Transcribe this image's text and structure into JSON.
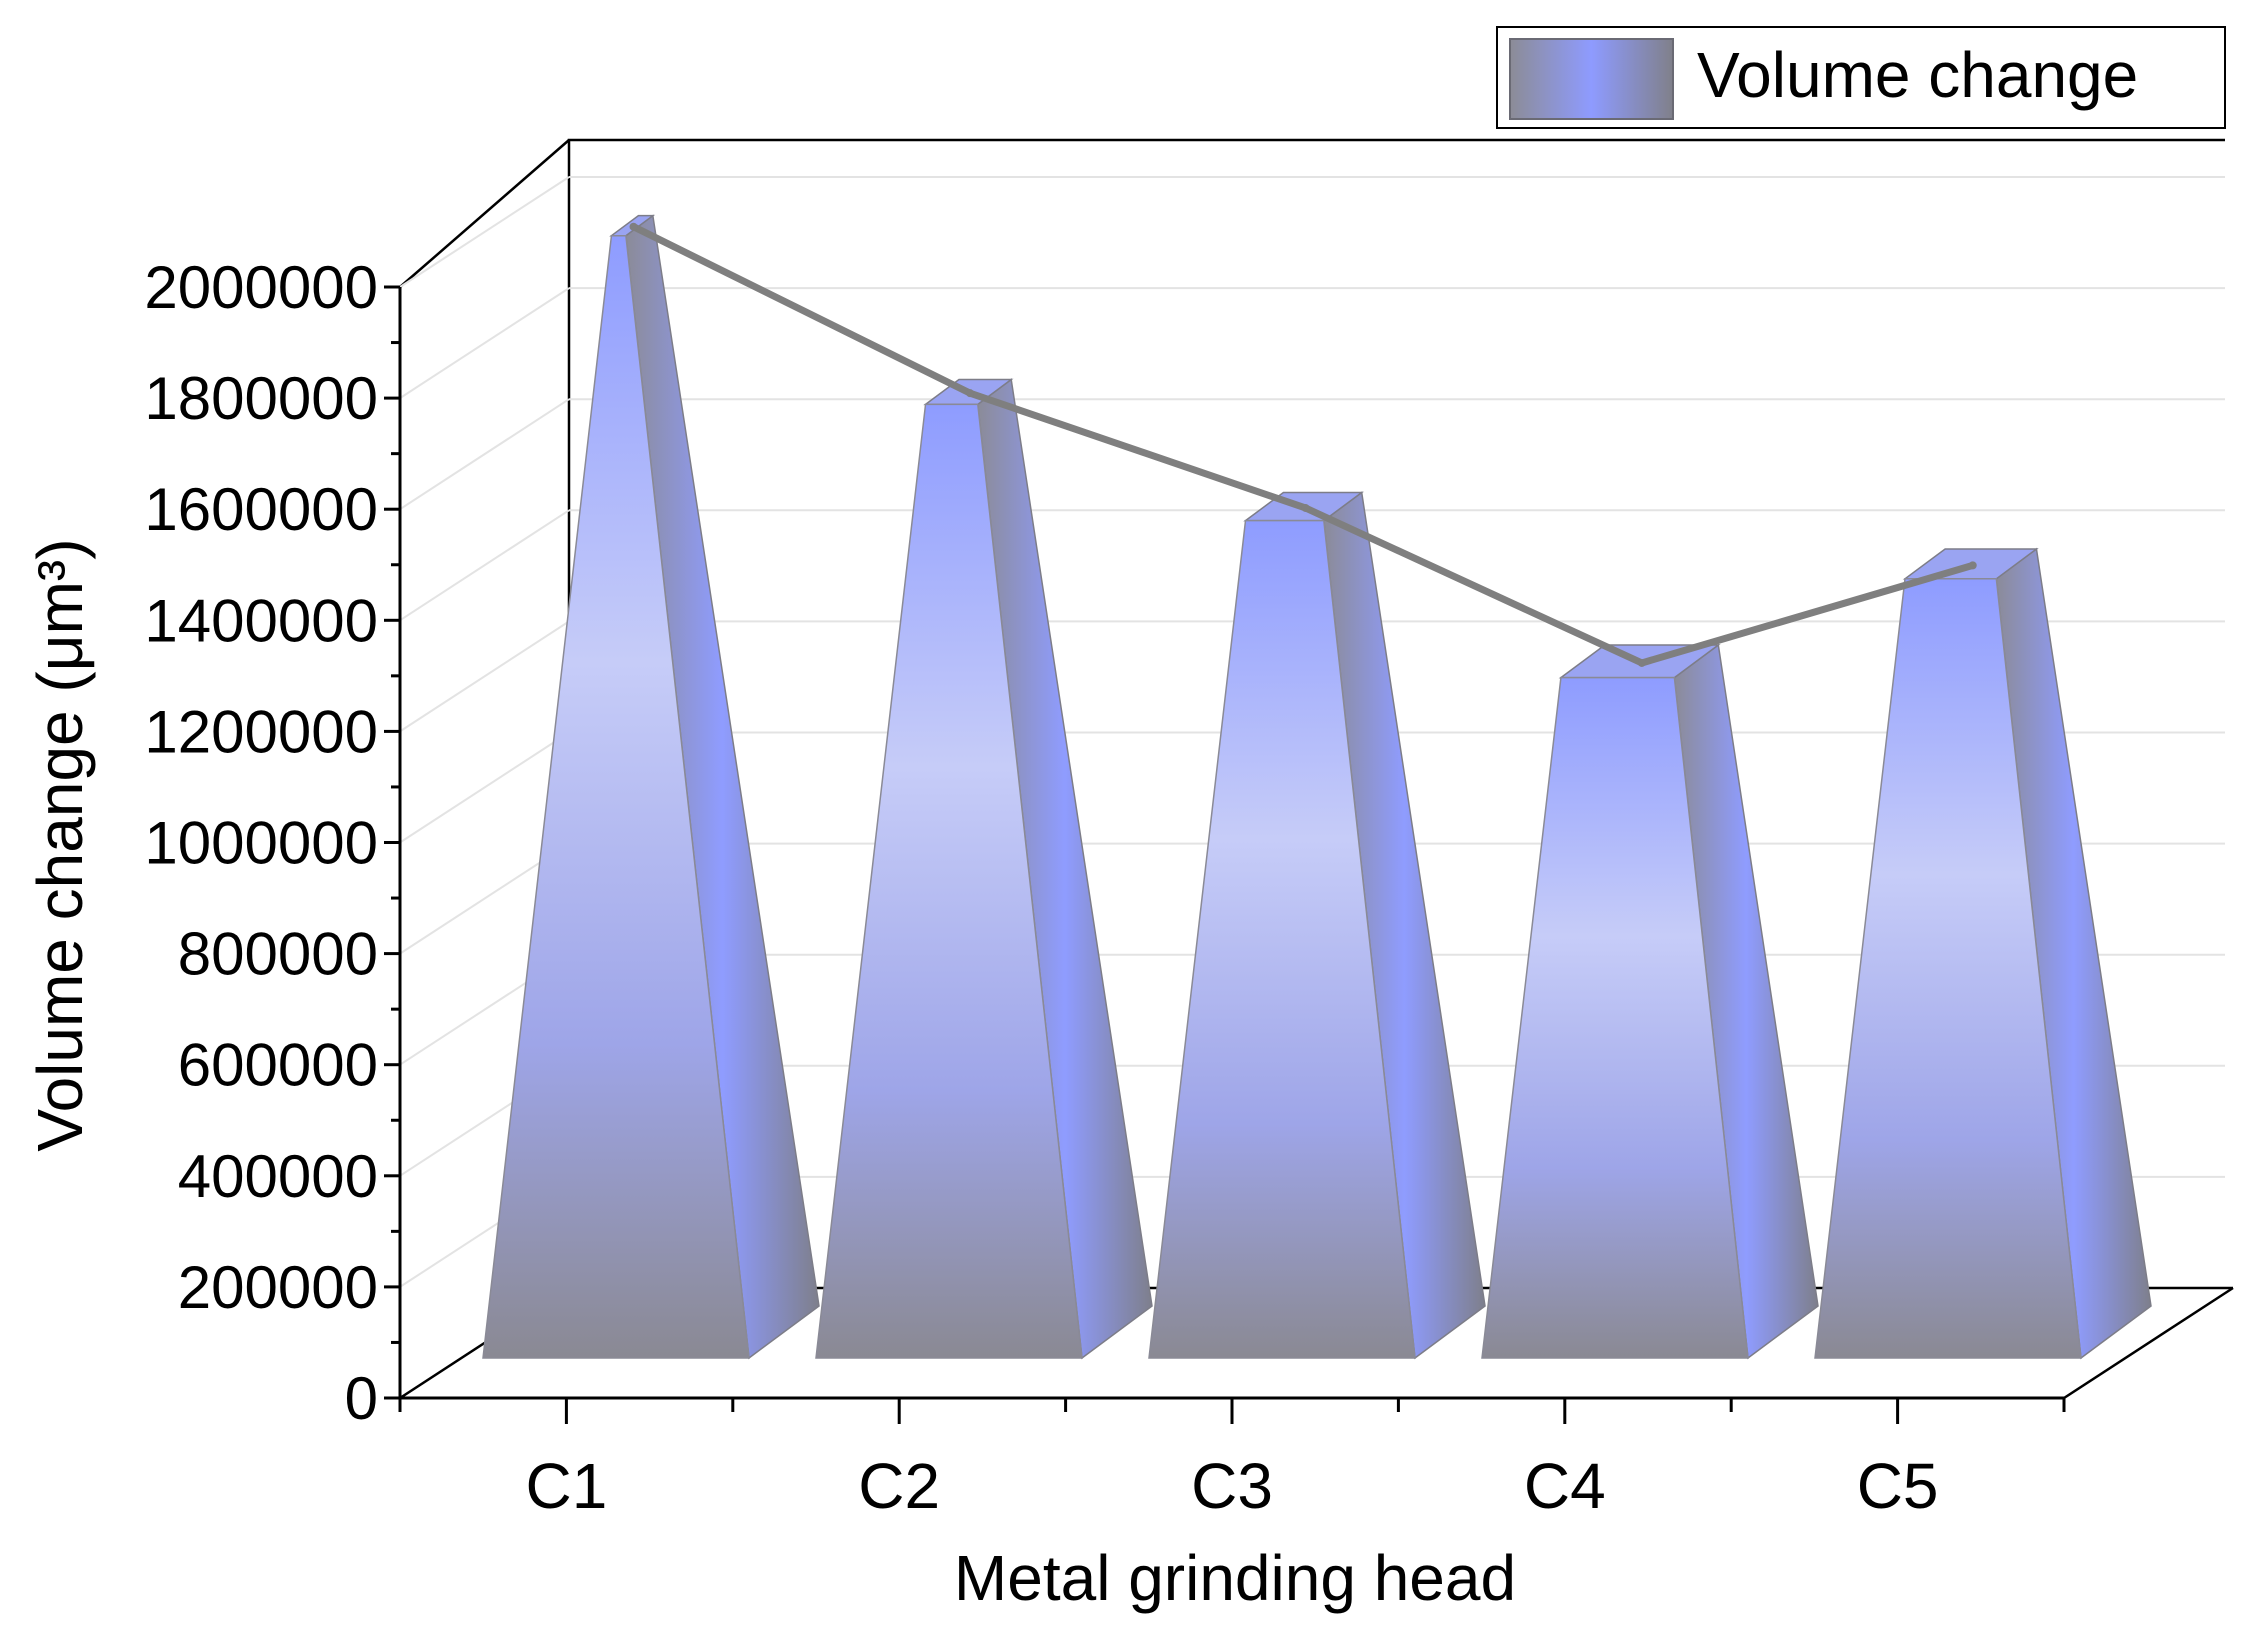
{
  "chart_data": {
    "type": "bar",
    "bar_shape": "3d-pyramid",
    "title": "",
    "xlabel": "Metal grinding head",
    "ylabel": "Volume change (μm³)",
    "categories": [
      "C1",
      "C2",
      "C3",
      "C4",
      "C5"
    ],
    "series": [
      {
        "name": "Volume change",
        "values": [
          1930000,
          1640000,
          1440000,
          1170000,
          1340000
        ]
      }
    ],
    "trend_line": {
      "name": "Volume change",
      "values": [
        1930000,
        1640000,
        1440000,
        1170000,
        1340000
      ]
    },
    "ylim": [
      0,
      2000000
    ],
    "yticks": [
      0,
      200000,
      400000,
      600000,
      800000,
      1000000,
      1200000,
      1400000,
      1600000,
      1800000,
      2000000
    ],
    "ytick_labels": [
      "0",
      "200000",
      "400000",
      "600000",
      "800000",
      "1000000",
      "1200000",
      "1400000",
      "1600000",
      "1800000",
      "2000000"
    ],
    "grid": true,
    "legend": {
      "position": "top-right",
      "entries": [
        "Volume change"
      ]
    }
  },
  "colors": {
    "bar_top": "#8896ff",
    "bar_mid": "#c4caf7",
    "bar_base": "#8e8c96",
    "line": "#7f7f7f",
    "axis": "#000000",
    "grid": "#e3e3e3"
  }
}
